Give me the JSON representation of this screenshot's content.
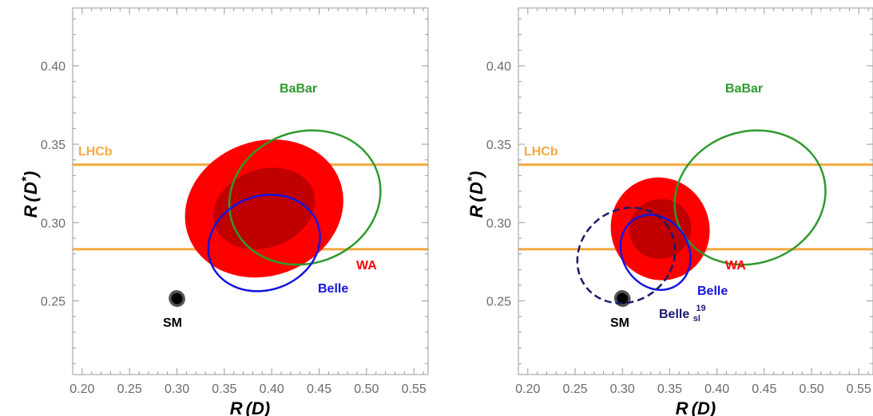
{
  "chart_data": [
    {
      "type": "scatter",
      "panel": "left",
      "xlabel": "R(D)",
      "ylabel": "R(D*)",
      "xlim": [
        0.19,
        0.565
      ],
      "ylim": [
        0.203,
        0.437
      ],
      "xticks": [
        "0.20",
        "0.25",
        "0.30",
        "0.35",
        "0.40",
        "0.45",
        "0.50",
        "0.55"
      ],
      "yticks": [
        "0.25",
        "0.30",
        "0.35",
        "0.40"
      ],
      "bands": [
        {
          "label": "LHCb",
          "ymin": 0.283,
          "ymax": 0.337,
          "color": "#f5a940"
        }
      ],
      "ellipses": [
        {
          "label": "WA",
          "cx": 0.392,
          "cy": 0.309,
          "rx": 0.085,
          "ry": 0.043,
          "angle": -20,
          "color": "#ff0000",
          "filled": true,
          "inner_rx": 0.055,
          "inner_ry": 0.025,
          "inner_color": "#c00000"
        },
        {
          "label": "BaBar",
          "cx": 0.435,
          "cy": 0.316,
          "rx": 0.081,
          "ry": 0.042,
          "angle": -20,
          "color": "#2e9a2e",
          "filled": false,
          "dashed": false
        },
        {
          "label": "Belle",
          "cx": 0.392,
          "cy": 0.287,
          "rx": 0.06,
          "ry": 0.03,
          "angle": -20,
          "color": "#1515dd",
          "filled": false,
          "dashed": false
        },
        {
          "label": "SM",
          "cx": 0.3,
          "cy": 0.2515,
          "rx": 0.009,
          "ry": 0.0052,
          "angle": 60,
          "color": "#555555",
          "filled": true,
          "inner_rx": 0.006,
          "inner_ry": 0.0035,
          "inner_color": "#000000"
        }
      ],
      "labels": {
        "lhcb": "LHCb",
        "babar": "BaBar",
        "wa": "WA",
        "belle": "Belle",
        "sm": "SM"
      }
    },
    {
      "type": "scatter",
      "panel": "right",
      "xlabel": "R(D)",
      "ylabel": "R(D*)",
      "xlim": [
        0.19,
        0.565
      ],
      "ylim": [
        0.203,
        0.437
      ],
      "xticks": [
        "0.20",
        "0.25",
        "0.30",
        "0.35",
        "0.40",
        "0.45",
        "0.50",
        "0.55"
      ],
      "yticks": [
        "0.25",
        "0.30",
        "0.35",
        "0.40"
      ],
      "bands": [
        {
          "label": "LHCb",
          "ymin": 0.283,
          "ymax": 0.337,
          "color": "#f5a940"
        }
      ],
      "ellipses": [
        {
          "label": "WA",
          "cx": 0.34,
          "cy": 0.296,
          "rx": 0.052,
          "ry": 0.033,
          "angle": -20,
          "color": "#ff0000",
          "filled": true,
          "inner_rx": 0.033,
          "inner_ry": 0.019,
          "inner_color": "#c00000"
        },
        {
          "label": "BaBar",
          "cx": 0.435,
          "cy": 0.316,
          "rx": 0.081,
          "ry": 0.042,
          "angle": -20,
          "color": "#2e9a2e",
          "filled": false,
          "dashed": false
        },
        {
          "label": "Belle",
          "cx": 0.335,
          "cy": 0.281,
          "rx": 0.035,
          "ry": 0.025,
          "angle": -32,
          "color": "#1515dd",
          "filled": false,
          "dashed": false
        },
        {
          "label": "Belle_sl^19",
          "cx": 0.304,
          "cy": 0.279,
          "rx": 0.054,
          "ry": 0.029,
          "angle": -40,
          "color": "#1a1a6e",
          "filled": false,
          "dashed": true
        },
        {
          "label": "SM",
          "cx": 0.3,
          "cy": 0.2515,
          "rx": 0.009,
          "ry": 0.0052,
          "angle": 60,
          "color": "#555555",
          "filled": true,
          "inner_rx": 0.006,
          "inner_ry": 0.0035,
          "inner_color": "#000000"
        }
      ],
      "labels": {
        "lhcb": "LHCb",
        "babar": "BaBar",
        "wa": "WA",
        "belle": "Belle",
        "sm": "SM",
        "bellesl": "Belle",
        "bellesl_sub": "sl",
        "bellesl_sup": "19"
      }
    }
  ]
}
